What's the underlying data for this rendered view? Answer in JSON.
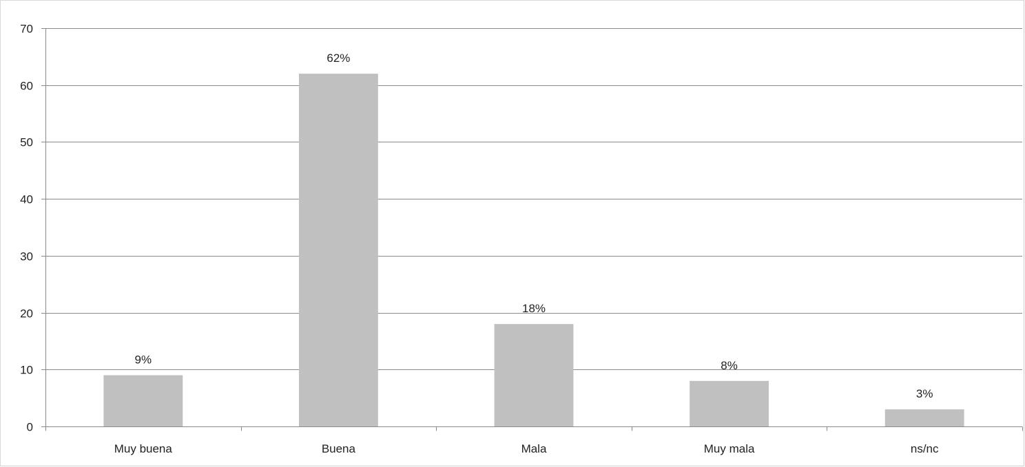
{
  "chart_data": {
    "type": "bar",
    "categories": [
      "Muy buena",
      "Buena",
      "Mala",
      "Muy mala",
      "ns/nc"
    ],
    "values": [
      9,
      62,
      18,
      8,
      3
    ],
    "data_labels": [
      "9%",
      "62%",
      "18%",
      "8%",
      "3%"
    ],
    "title": "",
    "xlabel": "",
    "ylabel": "",
    "ylim": [
      0,
      70
    ],
    "yticks": [
      "0",
      "10",
      "20",
      "30",
      "40",
      "50",
      "60",
      "70"
    ],
    "grid": true,
    "legend": "none",
    "bar_color": "#c0c0c0",
    "grid_color": "#888888"
  }
}
